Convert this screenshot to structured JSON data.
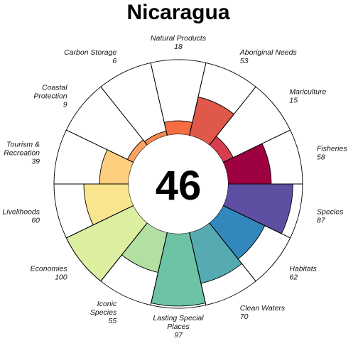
{
  "chart_data": {
    "type": "flower",
    "title": "Nicaragua",
    "overall_score": "46",
    "max_score": 100,
    "petals": [
      {
        "name": "Natural Products",
        "lines": [
          "Natural Products"
        ],
        "score": 18,
        "color": "#f46d43"
      },
      {
        "name": "Aboriginal Needs",
        "lines": [
          "Aboriginal Needs"
        ],
        "score": 53,
        "color": "#e0584a"
      },
      {
        "name": "Mariculture",
        "lines": [
          "Mariculture"
        ],
        "score": 15,
        "color": "#d53e4f"
      },
      {
        "name": "Fisheries",
        "lines": [
          "Fisheries"
        ],
        "score": 58,
        "color": "#9e0142"
      },
      {
        "name": "Species",
        "lines": [
          "Species"
        ],
        "score": 87,
        "color": "#5e4fa2"
      },
      {
        "name": "Habitats",
        "lines": [
          "Habitats"
        ],
        "score": 62,
        "color": "#3288bd"
      },
      {
        "name": "Clean Waters",
        "lines": [
          "Clean Waters"
        ],
        "score": 70,
        "color": "#56aab1"
      },
      {
        "name": "Lasting Special Places",
        "lines": [
          "Lasting Special",
          "Places"
        ],
        "score": 97,
        "color": "#6cc4a4"
      },
      {
        "name": "Iconic Species",
        "lines": [
          "Iconic",
          "Species"
        ],
        "score": 55,
        "color": "#b2e0a2"
      },
      {
        "name": "Economies",
        "lines": [
          "Economies"
        ],
        "score": 100,
        "color": "#dceea0"
      },
      {
        "name": "Livelihoods",
        "lines": [
          "Livelihoods"
        ],
        "score": 60,
        "color": "#f9e58e"
      },
      {
        "name": "Tourism & Recreation",
        "lines": [
          "Tourism &",
          "Recreation"
        ],
        "score": 39,
        "color": "#fdcf7e"
      },
      {
        "name": "Coastal Protection",
        "lines": [
          "Coastal",
          "Protection"
        ],
        "score": 9,
        "color": "#fca25f"
      },
      {
        "name": "Carbon Storage",
        "lines": [
          "Carbon Storage"
        ],
        "score": 6,
        "color": "#f8874e"
      }
    ]
  }
}
